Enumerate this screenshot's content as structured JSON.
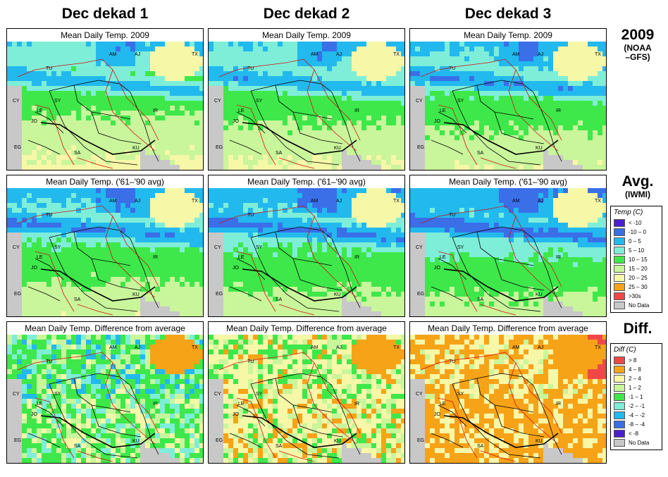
{
  "columns": [
    "Dec dekad 1",
    "Dec dekad 2",
    "Dec dekad 3"
  ],
  "rows": [
    {
      "label": "2009",
      "sublabel_1": "(NOAA",
      "sublabel_2": "–GFS)",
      "panel_title": "Mean Daily Temp. 2009",
      "kind": "temp2009"
    },
    {
      "label": "Avg.",
      "sublabel_1": "(IWMI)",
      "sublabel_2": "",
      "panel_title": "Mean Daily Temp. ('61–'90 avg)",
      "kind": "tempavg"
    },
    {
      "label": "Diff.",
      "sublabel_1": "",
      "sublabel_2": "",
      "panel_title": "Mean Daily Temp. Difference from average",
      "kind": "diff"
    }
  ],
  "country_labels": [
    "AM",
    "AJ",
    "TX",
    "TU",
    "CY",
    "SY",
    "LE",
    "IR",
    "JO",
    "EG",
    "SA",
    "KU"
  ],
  "temp_legend": {
    "title": "Temp (C)",
    "items": [
      {
        "label": "< -10",
        "color": "#4b1fd0"
      },
      {
        "label": "-10 – 0",
        "color": "#3a6fe8"
      },
      {
        "label": "0 – 5",
        "color": "#22b9ee"
      },
      {
        "label": "5 – 10",
        "color": "#7eeed8"
      },
      {
        "label": "10 – 15",
        "color": "#3ee84a"
      },
      {
        "label": "15 – 20",
        "color": "#c9f59b"
      },
      {
        "label": "20 – 25",
        "color": "#f7f7a8"
      },
      {
        "label": "25 – 30",
        "color": "#f7a318"
      },
      {
        "label": ">30s",
        "color": "#f04848"
      },
      {
        "label": "No Data",
        "color": "#c8c8c8"
      }
    ]
  },
  "diff_legend": {
    "title": "Diff (C)",
    "items": [
      {
        "label": "> 8",
        "color": "#f04848"
      },
      {
        "label": "4 – 8",
        "color": "#f7a318"
      },
      {
        "label": "2 – 4",
        "color": "#f7f7a8"
      },
      {
        "label": "1 – 2",
        "color": "#c9f59b"
      },
      {
        "label": "-1 – 1",
        "color": "#3ee84a"
      },
      {
        "label": "-2 – -1",
        "color": "#7eeed8"
      },
      {
        "label": "-4 – -2",
        "color": "#22b9ee"
      },
      {
        "label": "-8 – -4",
        "color": "#3a6fe8"
      },
      {
        "label": "< -8",
        "color": "#4b1fd0"
      },
      {
        "label": "No Data",
        "color": "#c8c8c8"
      }
    ]
  }
}
